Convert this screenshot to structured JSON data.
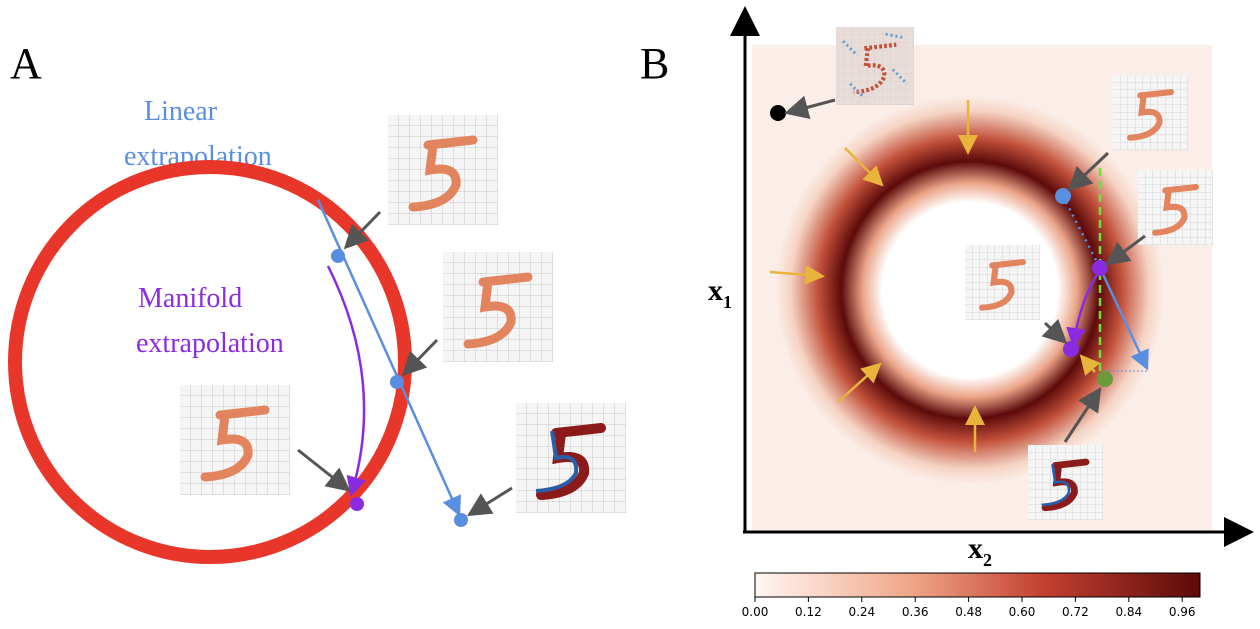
{
  "panel_a": {
    "letter": "A",
    "linear_label": [
      "Linear",
      "extrapolation"
    ],
    "manifold_label": [
      "Manifold",
      "extrapolation"
    ]
  },
  "panel_b": {
    "letter": "B",
    "y_axis_label": {
      "base": "x",
      "sub": "1"
    },
    "x_axis_label": {
      "base": "x",
      "sub": "2"
    },
    "colorbar": {
      "lim": [
        0,
        1
      ],
      "ticks": [
        {
          "value": 0,
          "label": "0.00"
        },
        {
          "value": 0.12,
          "label": "0.12"
        },
        {
          "value": 0.24,
          "label": "0.24"
        },
        {
          "value": 0.36,
          "label": "0.36"
        },
        {
          "value": 0.48,
          "label": "0.48"
        },
        {
          "value": 0.6,
          "label": "0.60"
        },
        {
          "value": 0.72,
          "label": "0.72"
        },
        {
          "value": 0.84,
          "label": "0.84"
        },
        {
          "value": 0.96,
          "label": "0.96"
        }
      ]
    }
  }
}
